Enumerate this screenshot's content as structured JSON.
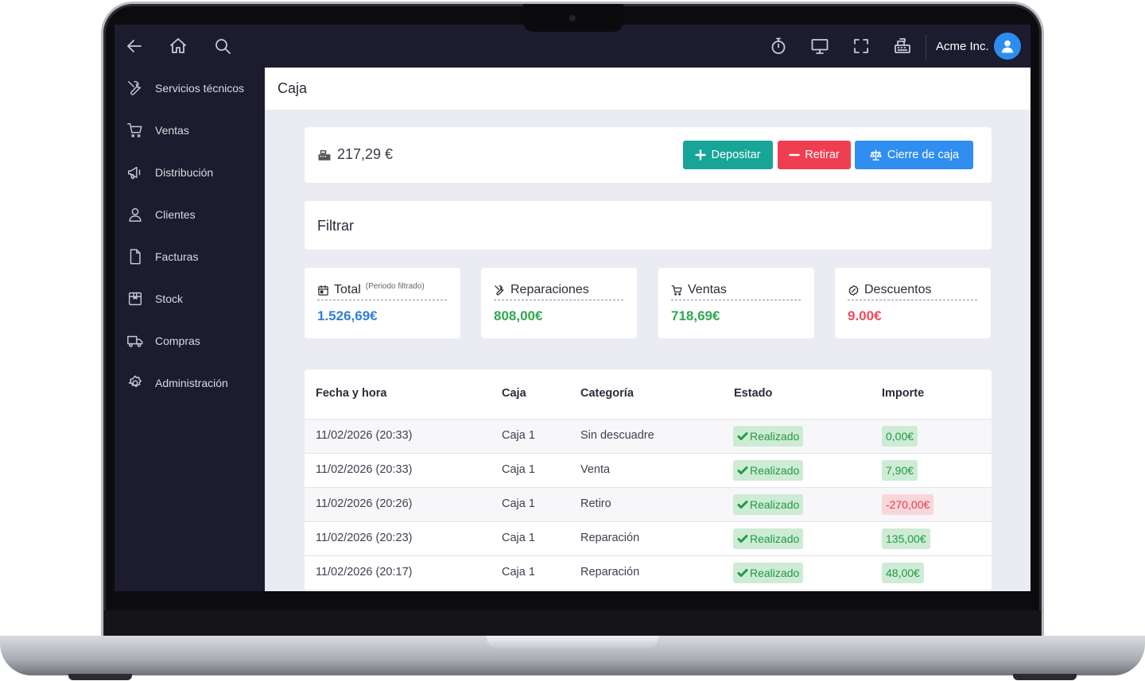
{
  "app": {
    "company": "Acme Inc.",
    "page_title": "Caja"
  },
  "sidebar": {
    "items": [
      {
        "label": "Servicios técnicos",
        "icon": "tools-icon"
      },
      {
        "label": "Ventas",
        "icon": "cart-icon"
      },
      {
        "label": "Distribución",
        "icon": "megaphone-icon"
      },
      {
        "label": "Clientes",
        "icon": "user-icon"
      },
      {
        "label": "Facturas",
        "icon": "document-icon"
      },
      {
        "label": "Stock",
        "icon": "box-icon"
      },
      {
        "label": "Compras",
        "icon": "truck-icon"
      },
      {
        "label": "Administración",
        "icon": "gear-icon"
      }
    ]
  },
  "cash": {
    "balance": "217,29 €",
    "deposit_label": "Depositar",
    "withdraw_label": "Retirar",
    "close_label": "Cierre de caja"
  },
  "filter": {
    "title": "Filtrar"
  },
  "stats": [
    {
      "label": "Total",
      "note": "(Periodo filtrado)",
      "value": "1.526,69€",
      "color": "#2f7fd8",
      "icon": "calendar-icon"
    },
    {
      "label": "Reparaciones",
      "note": "",
      "value": "808,00€",
      "color": "#2fa84f",
      "icon": "tools-icon"
    },
    {
      "label": "Ventas",
      "note": "",
      "value": "718,69€",
      "color": "#2fa84f",
      "icon": "cart-icon"
    },
    {
      "label": "Descuentos",
      "note": "",
      "value": "9.00€",
      "color": "#ef4a5a",
      "icon": "discount-icon"
    }
  ],
  "table": {
    "headers": {
      "date": "Fecha y hora",
      "box": "Caja",
      "category": "Categoría",
      "status": "Estado",
      "amount": "Importe"
    },
    "rows": [
      {
        "date": "11/02/2026 (20:33)",
        "box": "Caja 1",
        "category": "Sin descuadre",
        "status": "Realizado",
        "amount": "0,00€",
        "negative": false
      },
      {
        "date": "11/02/2026 (20:33)",
        "box": "Caja 1",
        "category": "Venta",
        "status": "Realizado",
        "amount": "7,90€",
        "negative": false
      },
      {
        "date": "11/02/2026 (20:26)",
        "box": "Caja 1",
        "category": "Retiro",
        "status": "Realizado",
        "amount": "-270,00€",
        "negative": true
      },
      {
        "date": "11/02/2026 (20:23)",
        "box": "Caja 1",
        "category": "Reparación",
        "status": "Realizado",
        "amount": "135,00€",
        "negative": false
      },
      {
        "date": "11/02/2026 (20:17)",
        "box": "Caja 1",
        "category": "Reparación",
        "status": "Realizado",
        "amount": "48,00€",
        "negative": false
      }
    ]
  },
  "colors": {
    "sidebar_bg": "#1c1c2e",
    "deposit": "#17a597",
    "withdraw": "#ef3e52",
    "close": "#2f8ef0"
  }
}
